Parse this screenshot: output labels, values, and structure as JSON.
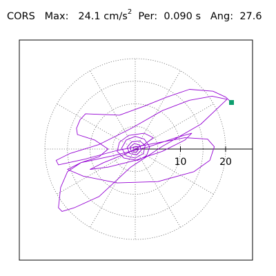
{
  "header": {
    "station": "CORS",
    "max_label": "Max:",
    "max_value": "24.1",
    "max_unit": "cm/s",
    "max_unit_exp": "2",
    "per_label": "Per:",
    "per_value": "0.090 s",
    "ang_label": "Ang:",
    "ang_value": "27.6"
  },
  "chart_data": {
    "type": "line",
    "title": "CORS  Max: 24.1 cm/s2  Per: 0.090 s  Ang: 27.6",
    "xlabel": "",
    "ylabel": "",
    "polar_rings": [
      5,
      10,
      15,
      20
    ],
    "radial_spokes_deg": [
      0,
      30,
      60,
      90,
      120,
      150,
      180,
      210,
      240,
      270,
      300,
      330
    ],
    "xticks": [
      10,
      20
    ],
    "axis_range": [
      -20,
      26
    ],
    "grid": true,
    "series": [
      {
        "color": "#9400d3",
        "points": [
          [
            21.3,
            10.3
          ],
          [
            20.0,
            11.5
          ],
          [
            17.2,
            12.8
          ],
          [
            12.0,
            13.2
          ],
          [
            7.0,
            11.5
          ],
          [
            2.0,
            9.5
          ],
          [
            -3.5,
            7.5
          ],
          [
            -11.0,
            7.8
          ],
          [
            -12.2,
            6.5
          ],
          [
            -13.0,
            4.6
          ],
          [
            -12.8,
            3.2
          ],
          [
            -9.0,
            2.0
          ],
          [
            -6.0,
            0.0
          ],
          [
            -8.0,
            -1.7
          ],
          [
            -12.0,
            -3.0
          ],
          [
            -15.0,
            -5.0
          ],
          [
            -16.5,
            -8.5
          ],
          [
            -17.0,
            -13.0
          ],
          [
            -16.2,
            -13.8
          ],
          [
            -13.5,
            -13.0
          ],
          [
            -8.0,
            -10.5
          ],
          [
            -1.0,
            -4.0
          ],
          [
            6.0,
            0.6
          ],
          [
            14.5,
            5.5
          ],
          [
            20.3,
            11.0
          ],
          [
            17.0,
            11.7
          ],
          [
            12.0,
            10.8
          ],
          [
            6.0,
            8.5
          ],
          [
            -1.0,
            4.5
          ],
          [
            -8.0,
            1.0
          ],
          [
            -14.5,
            -1.0
          ],
          [
            -17.5,
            -2.5
          ],
          [
            -17.0,
            -3.5
          ],
          [
            -11.0,
            -2.2
          ],
          [
            -4.0,
            -0.3
          ],
          [
            4.0,
            1.2
          ],
          [
            11.0,
            2.5
          ],
          [
            16.0,
            2.2
          ],
          [
            17.5,
            0.5
          ],
          [
            16.5,
            -2.5
          ],
          [
            13.0,
            -5.0
          ],
          [
            5.0,
            -7.2
          ],
          [
            -4.0,
            -7.5
          ],
          [
            -11.5,
            -6.0
          ],
          [
            -15.0,
            -4.5
          ],
          [
            -12.0,
            -3.0
          ],
          [
            -5.0,
            -1.5
          ],
          [
            3.0,
            0.5
          ],
          [
            9.0,
            2.5
          ],
          [
            12.5,
            3.5
          ],
          [
            11.0,
            2.0
          ],
          [
            6.0,
            -0.5
          ],
          [
            0.0,
            -2.5
          ],
          [
            -6.0,
            -4.0
          ],
          [
            -10.0,
            -4.5
          ],
          [
            -7.0,
            -3.0
          ],
          [
            -2.0,
            -1.0
          ],
          [
            2.0,
            1.0
          ],
          [
            4.0,
            2.5
          ],
          [
            2.0,
            3.5
          ],
          [
            -1.5,
            3.0
          ],
          [
            -3.5,
            1.5
          ],
          [
            -4.0,
            -0.5
          ],
          [
            -2.5,
            -2.0
          ],
          [
            0.5,
            -2.5
          ],
          [
            2.5,
            -1.5
          ],
          [
            3.2,
            0.5
          ],
          [
            2.0,
            2.2
          ],
          [
            0.0,
            2.8
          ],
          [
            -2.0,
            2.0
          ],
          [
            -3.0,
            0.2
          ],
          [
            -2.0,
            -1.5
          ],
          [
            0.0,
            -2.0
          ],
          [
            1.8,
            -1.0
          ],
          [
            2.2,
            0.8
          ],
          [
            1.0,
            1.8
          ],
          [
            -0.8,
            1.6
          ],
          [
            -1.8,
            0.4
          ],
          [
            -1.2,
            -1.0
          ],
          [
            0.3,
            -1.3
          ],
          [
            1.3,
            -0.3
          ],
          [
            1.0,
            0.9
          ],
          [
            -0.2,
            1.2
          ],
          [
            -1.1,
            0.5
          ],
          [
            -0.9,
            -0.6
          ],
          [
            0.2,
            -0.8
          ],
          [
            0.8,
            0.0
          ],
          [
            0.3,
            0.6
          ],
          [
            -0.4,
            0.4
          ],
          [
            -0.3,
            -0.2
          ],
          [
            0.1,
            0.0
          ]
        ]
      }
    ],
    "start_marker": [
      21.3,
      10.3
    ],
    "start_marker_color": "#0d9e6e"
  }
}
